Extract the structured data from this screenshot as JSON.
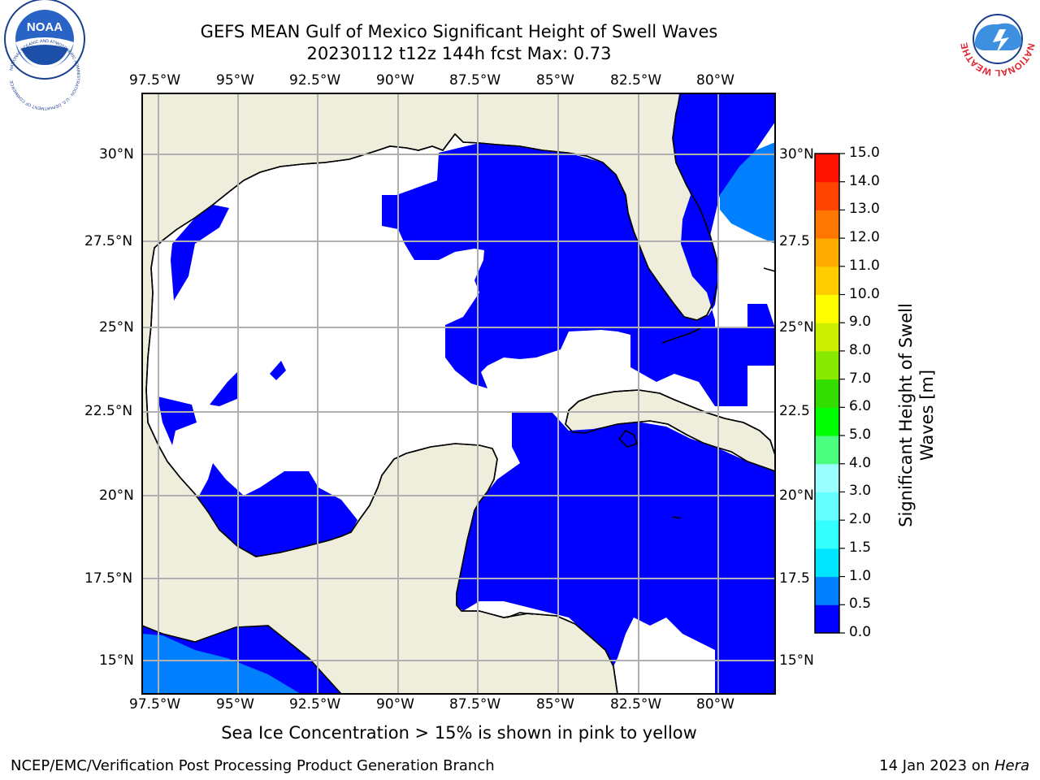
{
  "title": {
    "line1": "GEFS MEAN Gulf of Mexico Significant Height of Swell Waves",
    "line2": "20230112 t12z 144h fcst   Max: 0.73"
  },
  "map": {
    "lon_ticks": [
      "97.5°W",
      "95°W",
      "92.5°W",
      "90°W",
      "87.5°W",
      "85°W",
      "82.5°W",
      "80°W"
    ],
    "lat_ticks": [
      "30°N",
      "27.5°N",
      "25°N",
      "22.5°N",
      "20°N",
      "17.5°N",
      "15°N"
    ],
    "lat_ticks_right": [
      "30°N",
      "27.5",
      "25°N",
      "22.5",
      "20°N",
      "17.5",
      "15°N"
    ],
    "land_color": "#efeedd",
    "grid_color": "#b0b0b0"
  },
  "colorbar": {
    "title_line1": "Significant Height of Swell",
    "title_line2": "Waves [m]",
    "ticks": [
      "0.0",
      "0.5",
      "1.0",
      "1.5",
      "2.0",
      "3.0",
      "4.0",
      "5.0",
      "6.0",
      "7.0",
      "8.0",
      "9.0",
      "10.0",
      "11.0",
      "12.0",
      "13.0",
      "14.0",
      "15.0"
    ],
    "colors": [
      "#0000ff",
      "#0080ff",
      "#00e5ff",
      "#33ffff",
      "#66ffff",
      "#99ffff",
      "#4dff80",
      "#00ff00",
      "#33dd00",
      "#88e800",
      "#ccee00",
      "#ffff00",
      "#ffcc00",
      "#ffaa00",
      "#ff7700",
      "#ff4400",
      "#ff1100"
    ]
  },
  "caption": "Sea Ice Concentration > 15% is shown in pink to yellow",
  "footer": {
    "left": "NCEP/EMC/Verification Post Processing Product Generation Branch",
    "right_prefix": "14 Jan 2023 on ",
    "right_machine": "Hera"
  },
  "logos": {
    "noaa_text": "NOAA",
    "noaa_ring": "NATIONAL OCEANIC AND ATMOSPHERIC ADMINISTRATION · U.S. DEPARTMENT OF COMMERCE",
    "nws_ring": "NATIONAL WEATHER SERVICE"
  }
}
